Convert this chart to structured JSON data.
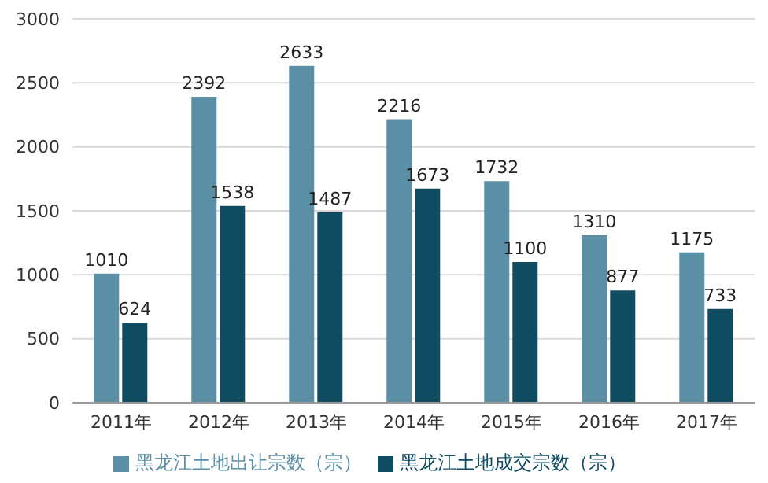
{
  "chart_data": {
    "type": "bar",
    "categories": [
      "2011年",
      "2012年",
      "2013年",
      "2014年",
      "2015年",
      "2016年",
      "2017年"
    ],
    "series": [
      {
        "name": "黑龙江土地出让宗数（宗）",
        "color": "#5b8fa6",
        "values": [
          1010,
          2392,
          2633,
          2216,
          1732,
          1310,
          1175
        ]
      },
      {
        "name": "黑龙江土地成交宗数（宗）",
        "color": "#0f4c62",
        "values": [
          624,
          1538,
          1487,
          1673,
          1100,
          877,
          733
        ]
      }
    ],
    "ylim": [
      0,
      3000
    ],
    "yticks": [
      0,
      500,
      1000,
      1500,
      2000,
      2500,
      3000
    ],
    "grid": "y",
    "legend": "bottom",
    "data_labels": true
  }
}
